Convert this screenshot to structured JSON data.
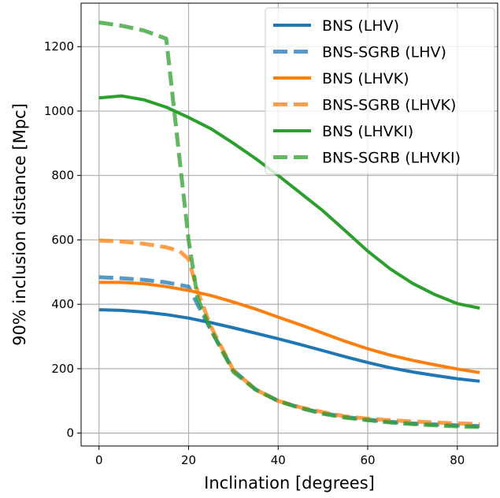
{
  "chart_data": {
    "type": "line",
    "title": "",
    "xlabel": "Inclination [degrees]",
    "ylabel": "90% inclusion distance [Mpc]",
    "xlim": [
      -4,
      89
    ],
    "ylim": [
      -40,
      1335
    ],
    "xticks": [
      0,
      20,
      40,
      60,
      80
    ],
    "yticks": [
      0,
      200,
      400,
      600,
      800,
      1000,
      1200
    ],
    "grid": true,
    "legend_position": "top-right",
    "series": [
      {
        "name": "BNS (LHV)",
        "color": "#1f77b4",
        "dashed": false,
        "x": [
          0,
          5,
          10,
          15,
          20,
          25,
          30,
          35,
          40,
          45,
          50,
          55,
          60,
          65,
          70,
          75,
          80,
          85
        ],
        "y": [
          383,
          381,
          376,
          368,
          357,
          343,
          327,
          310,
          293,
          275,
          256,
          237,
          219,
          203,
          190,
          179,
          169,
          161
        ]
      },
      {
        "name": "BNS-SGRB (LHV)",
        "color": "#1f77b4",
        "dashed": true,
        "x": [
          0,
          5,
          10,
          15,
          20,
          22,
          25,
          30,
          35,
          40,
          45,
          50,
          55,
          60,
          65,
          70,
          75,
          80,
          85
        ],
        "y": [
          484,
          481,
          476,
          468,
          455,
          400,
          320,
          195,
          135,
          100,
          78,
          62,
          50,
          42,
          35,
          30,
          27,
          24,
          22
        ]
      },
      {
        "name": "BNS (LHVK)",
        "color": "#ff7f0e",
        "dashed": false,
        "x": [
          0,
          5,
          10,
          15,
          20,
          25,
          30,
          35,
          40,
          45,
          50,
          55,
          60,
          65,
          70,
          75,
          80,
          85
        ],
        "y": [
          468,
          468,
          464,
          455,
          443,
          427,
          407,
          385,
          360,
          336,
          310,
          285,
          262,
          242,
          226,
          212,
          199,
          188
        ]
      },
      {
        "name": "BNS-SGRB (LHVK)",
        "color": "#ff7f0e",
        "dashed": true,
        "x": [
          0,
          5,
          10,
          15,
          18,
          20,
          22,
          25,
          30,
          35,
          40,
          45,
          50,
          55,
          60,
          65,
          70,
          75,
          80,
          85
        ],
        "y": [
          598,
          595,
          588,
          577,
          565,
          540,
          440,
          330,
          195,
          135,
          100,
          80,
          65,
          52,
          45,
          40,
          36,
          33,
          30,
          28
        ]
      },
      {
        "name": "BNS (LHVKI)",
        "color": "#2ca02c",
        "dashed": false,
        "x": [
          0,
          5,
          10,
          15,
          20,
          25,
          30,
          35,
          40,
          45,
          50,
          55,
          60,
          65,
          70,
          75,
          80,
          85
        ],
        "y": [
          1041,
          1047,
          1035,
          1012,
          980,
          945,
          900,
          852,
          800,
          745,
          690,
          628,
          565,
          510,
          465,
          430,
          402,
          388
        ]
      },
      {
        "name": "BNS-SGRB (LHVKI)",
        "color": "#2ca02c",
        "dashed": true,
        "x": [
          0,
          5,
          10,
          13,
          15,
          16,
          18,
          20,
          22,
          25,
          30,
          35,
          40,
          45,
          50,
          55,
          60,
          65,
          70,
          75,
          80,
          85
        ],
        "y": [
          1275,
          1265,
          1250,
          1235,
          1225,
          1100,
          850,
          600,
          420,
          320,
          190,
          135,
          100,
          78,
          60,
          48,
          40,
          33,
          28,
          24,
          21,
          19
        ]
      }
    ]
  }
}
